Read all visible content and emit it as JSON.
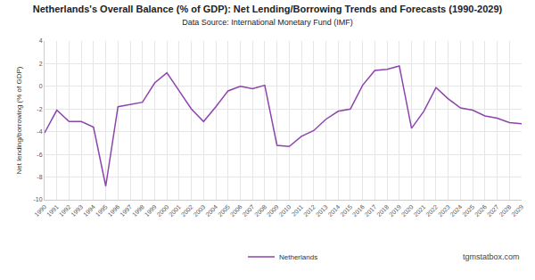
{
  "chart_data": {
    "type": "line",
    "title": "Netherlands's Overall Balance (% of GDP): Net Lending/Borrowing Trends and Forecasts (1990-2029)",
    "subtitle": "Data Source: International Monetary Fund (IMF)",
    "y_label": "Net lending/borrowing (% of GDP)",
    "categories": [
      "1990",
      "1991",
      "1992",
      "1993",
      "1994",
      "1995",
      "1996",
      "1997",
      "1998",
      "1999",
      "2000",
      "2001",
      "2002",
      "2003",
      "2004",
      "2005",
      "2006",
      "2007",
      "2008",
      "2009",
      "2010",
      "2011",
      "2012",
      "2013",
      "2014",
      "2015",
      "2016",
      "2017",
      "2018",
      "2019",
      "2020",
      "2021",
      "2022",
      "2023",
      "2024",
      "2025",
      "2026",
      "2027",
      "2028",
      "2029"
    ],
    "series": [
      {
        "name": "Netherlands",
        "color": "#8e44ad",
        "values": [
          -4.1,
          -2.1,
          -3.1,
          -3.1,
          -3.6,
          -8.8,
          -1.8,
          -1.6,
          -1.4,
          0.3,
          1.2,
          -0.4,
          -2.0,
          -3.1,
          -1.8,
          -0.4,
          0.0,
          -0.2,
          0.1,
          -5.2,
          -5.3,
          -4.4,
          -3.9,
          -2.9,
          -2.2,
          -2.0,
          0.1,
          1.4,
          1.5,
          1.8,
          -3.7,
          -2.2,
          -0.1,
          -1.1,
          -1.9,
          -2.1,
          -2.6,
          -2.8,
          -3.2,
          -3.3
        ]
      }
    ],
    "ylim": [
      -10,
      4
    ],
    "yticks": [
      -10,
      -8,
      -6,
      -4,
      -2,
      0,
      2,
      4
    ],
    "grid": true,
    "legend": "bottom",
    "annotations": [
      "tgmstatbox.com"
    ]
  }
}
